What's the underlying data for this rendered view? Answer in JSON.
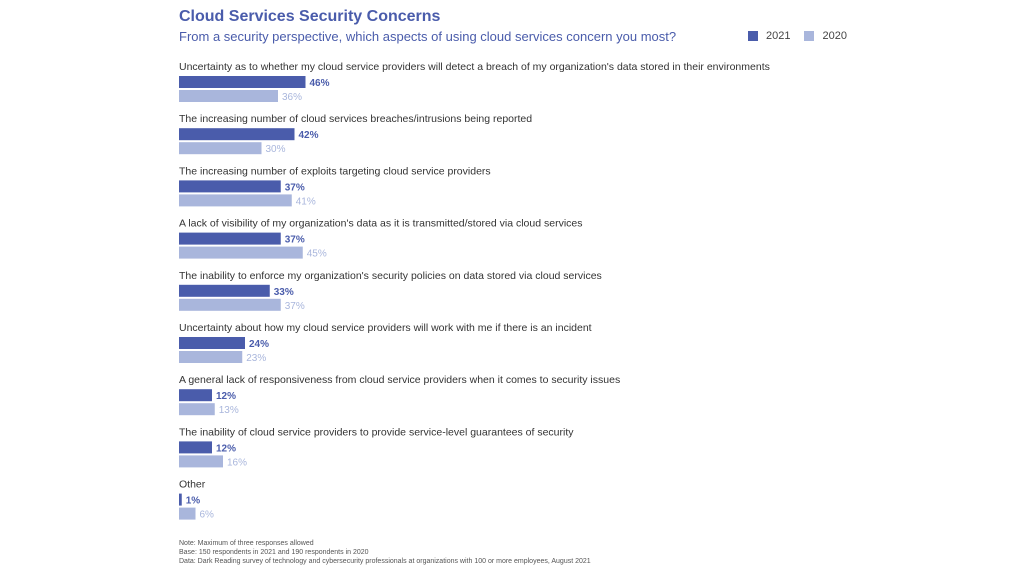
{
  "chart_data": {
    "type": "bar",
    "orientation": "horizontal",
    "title": "Cloud Services Security Concerns",
    "subtitle": "From a security perspective, which aspects of using cloud services concern you most?",
    "categories": [
      "Uncertainty as to whether my cloud service providers will detect a breach of my organization's data stored in their environments",
      "The increasing number of cloud services breaches/intrusions being reported",
      "The increasing number of exploits targeting cloud service providers",
      "A lack of visibility of my organization's data as it is transmitted/stored via cloud services",
      "The inability to enforce my organization's security policies on data stored via cloud services",
      "Uncertainty about how my cloud service providers will work with me if there is an incident",
      "A general lack of responsiveness from cloud service providers when it comes to security issues",
      "The inability of cloud service providers to provide service-level guarantees of security",
      "Other"
    ],
    "series": [
      {
        "name": "2021",
        "color": "#4a5cab",
        "values": [
          46,
          42,
          37,
          37,
          33,
          24,
          12,
          12,
          1
        ]
      },
      {
        "name": "2020",
        "color": "#a9b6dc",
        "values": [
          36,
          30,
          41,
          45,
          37,
          23,
          13,
          16,
          6
        ]
      }
    ],
    "value_suffix": "%",
    "legend_position": "top-right",
    "grid": false
  },
  "footnotes": {
    "note": "Note: Maximum of three responses allowed",
    "base": "Base: 150 respondents in 2021 and 190 respondents in 2020",
    "data": "Data: Dark Reading survey of technology and cybersecurity professionals at organizations with 100 or more employees, August 2021"
  }
}
